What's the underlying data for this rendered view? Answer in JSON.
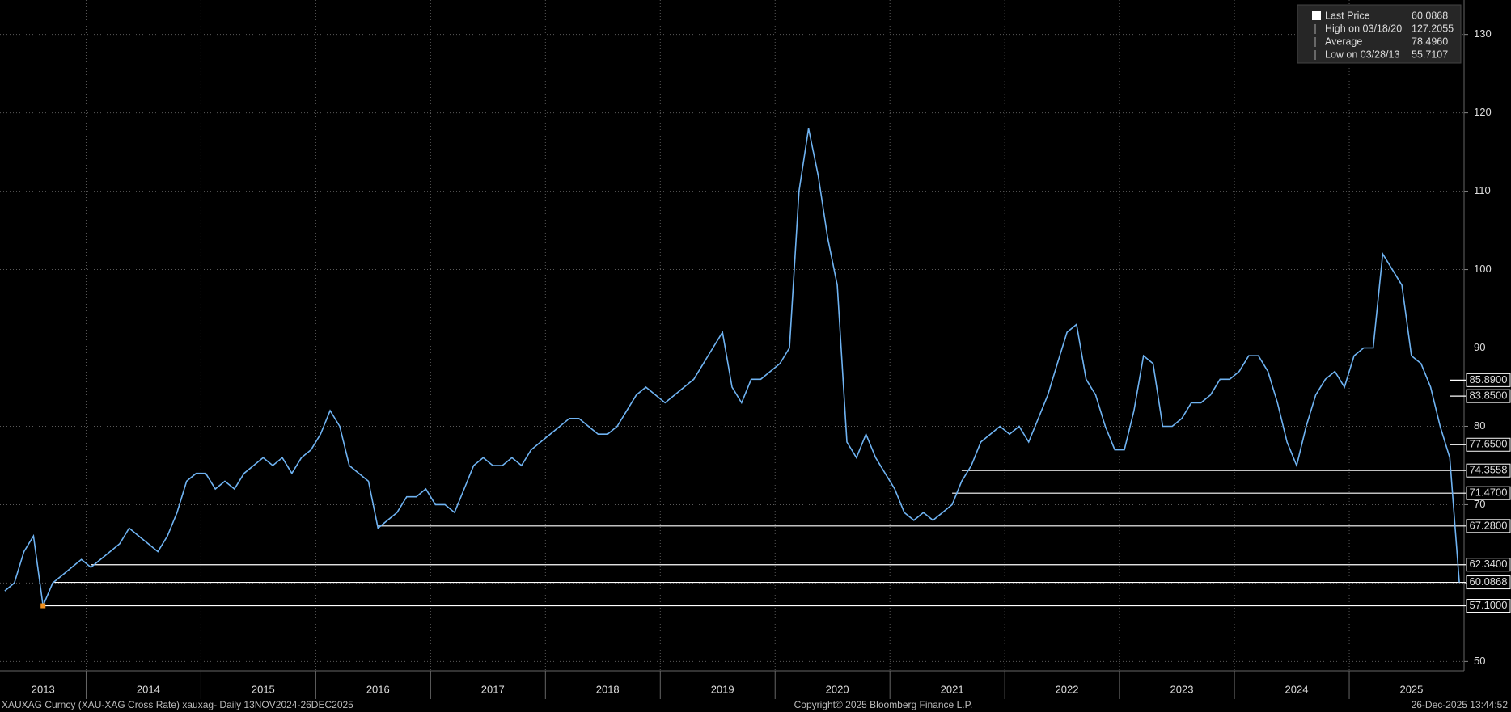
{
  "chart_data": {
    "type": "line",
    "categories": [
      null,
      null,
      null,
      null,
      "2013",
      null,
      null,
      null,
      null,
      null,
      null,
      null,
      null,
      null,
      null,
      "2014",
      null,
      null,
      null,
      null,
      null,
      null,
      null,
      null,
      null,
      null,
      null,
      "2015",
      null,
      null,
      null,
      null,
      null,
      null,
      null,
      null,
      null,
      null,
      null,
      "2016",
      null,
      null,
      null,
      null,
      null,
      null,
      null,
      null,
      null,
      null,
      null,
      "2017",
      null,
      null,
      null,
      null,
      null,
      null,
      null,
      null,
      null,
      null,
      null,
      "2018",
      null,
      null,
      null,
      null,
      null,
      null,
      null,
      null,
      null,
      null,
      null,
      "2019",
      null,
      null,
      null,
      null,
      null,
      null,
      null,
      null,
      null,
      null,
      null,
      "2020",
      null,
      null,
      null,
      null,
      null,
      null,
      null,
      null,
      null,
      null,
      null,
      "2021",
      null,
      null,
      null,
      null,
      null,
      null,
      null,
      null,
      null,
      null,
      null,
      "2022",
      null,
      null,
      null,
      null,
      null,
      null,
      null,
      null,
      null,
      null,
      null,
      "2023",
      null,
      null,
      null,
      null,
      null,
      null,
      null,
      null,
      null,
      null,
      null,
      "2024",
      null,
      null,
      null,
      null,
      null,
      null,
      null,
      null,
      null,
      null,
      null,
      "2025",
      null,
      null,
      null,
      null,
      null
    ],
    "series": [
      {
        "name": "Last Price",
        "color": "#6fb3f2",
        "values": [
          59,
          60,
          64,
          66,
          57.1,
          60,
          61,
          62,
          63,
          62,
          63,
          64,
          65,
          67,
          66,
          65,
          64,
          66,
          69,
          73,
          74,
          74,
          72,
          73,
          72,
          74,
          75,
          76,
          75,
          76,
          74,
          76,
          77,
          79,
          82,
          80,
          75,
          74,
          73,
          67,
          68,
          69,
          71,
          71,
          72,
          70,
          70,
          69,
          72,
          75,
          76,
          75,
          75,
          76,
          75,
          77,
          78,
          79,
          80,
          81,
          81,
          80,
          79,
          79,
          80,
          82,
          84,
          85,
          84,
          83,
          84,
          85,
          86,
          88,
          90,
          92,
          85,
          83,
          86,
          86,
          87,
          88,
          90,
          110,
          118,
          112,
          104,
          98,
          78,
          76,
          79,
          76,
          74,
          72,
          69,
          68,
          69,
          68,
          69,
          70,
          73,
          75,
          78,
          79,
          80,
          79,
          80,
          78,
          81,
          84,
          88,
          92,
          93,
          86,
          84,
          80,
          77,
          77,
          82,
          89,
          88,
          80,
          80,
          81,
          83,
          83,
          84,
          86,
          86,
          87,
          89,
          89,
          87,
          83,
          78,
          75,
          80,
          84,
          86,
          87,
          85,
          89,
          90,
          90,
          102,
          100,
          98,
          89,
          88,
          85,
          80,
          76,
          60.0868
        ]
      }
    ],
    "ylim": [
      48.8,
      134.4
    ],
    "yticks": [
      50,
      60,
      70,
      80,
      90,
      100,
      110,
      120,
      130
    ],
    "grid": true,
    "levels": {
      "color": "#ffffff",
      "values": [
        85.89,
        83.85,
        77.65,
        74.3558,
        71.47,
        67.28,
        62.34,
        60.0868,
        57.1
      ],
      "value_labels": [
        "85.8900",
        "83.8500",
        "77.6500",
        "74.3558",
        "71.4700",
        "67.2800",
        "62.3400",
        "60.0868",
        "57.1000"
      ]
    },
    "stats": [
      {
        "label": "Last Price",
        "value": "60.0868"
      },
      {
        "label": "High on 03/18/20",
        "value": "127.2055"
      },
      {
        "label": "Average",
        "value": "78.4960"
      },
      {
        "label": "Low on 03/28/13",
        "value": "55.7107"
      }
    ]
  },
  "footer": {
    "left": "XAUXAG Curncy (XAU-XAG Cross Rate) xauxag- Daily 13NOV2024-26DEC2025",
    "center": "Copyright© 2025 Bloomberg Finance L.P.",
    "right": "26-Dec-2025 13:44:52"
  }
}
